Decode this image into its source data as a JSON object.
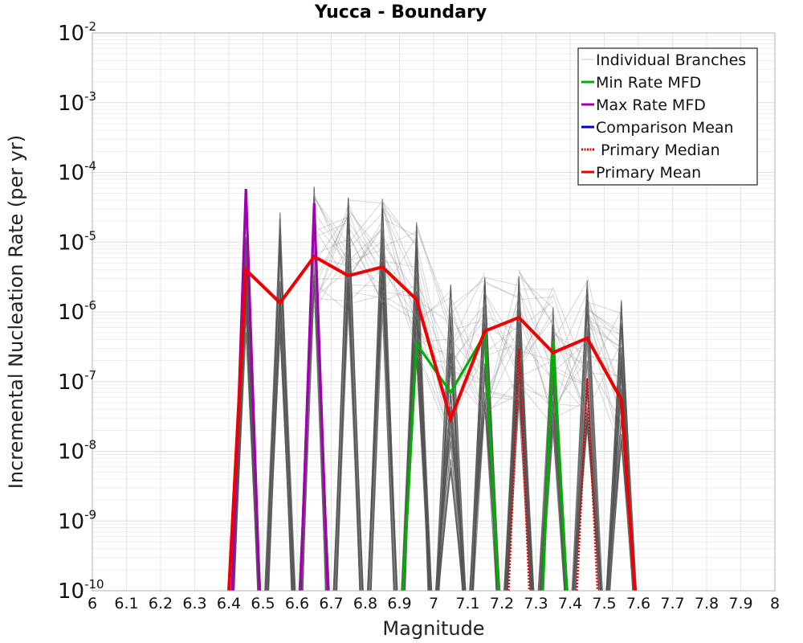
{
  "chart_data": {
    "type": "line",
    "title": "Yucca - Boundary",
    "xlabel": "Magnitude",
    "ylabel": "Incremental Nucleation Rate (per yr)",
    "yscale": "log",
    "xlim": [
      6.0,
      8.0
    ],
    "ylim": [
      1e-10,
      0.01
    ],
    "x_ticks": [
      "6",
      "6.1",
      "6.2",
      "6.3",
      "6.4",
      "6.5",
      "6.6",
      "6.7",
      "6.8",
      "6.9",
      "7",
      "7.1",
      "7.2",
      "7.3",
      "7.4",
      "7.5",
      "7.6",
      "7.7",
      "7.8",
      "7.9",
      "8"
    ],
    "y_ticks": [
      {
        "base": "10",
        "exp": "-2"
      },
      {
        "base": "10",
        "exp": "-3"
      },
      {
        "base": "10",
        "exp": "-4"
      },
      {
        "base": "10",
        "exp": "-5"
      },
      {
        "base": "10",
        "exp": "-6"
      },
      {
        "base": "10",
        "exp": "-7"
      },
      {
        "base": "10",
        "exp": "-8"
      },
      {
        "base": "10",
        "exp": "-9"
      },
      {
        "base": "10",
        "exp": "-10"
      }
    ],
    "grid": true,
    "legend_position": "top-right",
    "legend": [
      {
        "label": "Individual Branches",
        "color": "#c8c8c8",
        "style": "solid",
        "thin": true
      },
      {
        "label": "Min Rate MFD",
        "color": "#00b000",
        "style": "solid"
      },
      {
        "label": "Max Rate MFD",
        "color": "#a000b0",
        "style": "solid"
      },
      {
        "label": "Comparison Mean",
        "color": "#0000d0",
        "style": "solid"
      },
      {
        "label": " Primary Median",
        "color": "#ee0000",
        "style": "dotted"
      },
      {
        "label": "Primary Mean",
        "color": "#ee0000",
        "style": "solid"
      }
    ],
    "branch_spikes": [
      {
        "x": 6.45,
        "high": 1.2e-05,
        "low": 5e-07
      },
      {
        "x": 6.55,
        "high": 4e-05,
        "low": 5e-07
      },
      {
        "x": 6.65,
        "high": 6.5e-05,
        "low": 1e-06
      },
      {
        "x": 6.75,
        "high": 4.5e-05,
        "low": 1e-06
      },
      {
        "x": 6.85,
        "high": 4.5e-05,
        "low": 1e-06
      },
      {
        "x": 6.95,
        "high": 2.3e-05,
        "low": 2e-07
      },
      {
        "x": 7.05,
        "high": 2.5e-06,
        "low": 5e-09
      },
      {
        "x": 7.15,
        "high": 4.3e-06,
        "low": 3e-08
      },
      {
        "x": 7.25,
        "high": 4.3e-06,
        "low": 5e-08
      },
      {
        "x": 7.35,
        "high": 2.3e-06,
        "low": 2e-08
      },
      {
        "x": 7.45,
        "high": 3.3e-06,
        "low": 2e-08
      },
      {
        "x": 7.55,
        "high": 1.7e-06,
        "low": 1e-08
      }
    ],
    "series": [
      {
        "name": "Primary Mean",
        "x": [
          6.4,
          6.45,
          6.55,
          6.65,
          6.75,
          6.85,
          6.95,
          7.05,
          7.15,
          7.25,
          7.35,
          7.45,
          7.55,
          7.59
        ],
        "values": [
          1e-10,
          4e-06,
          1.35e-06,
          6.2e-06,
          3.3e-06,
          4.4e-06,
          1.5e-06,
          2.9e-08,
          5.3e-07,
          8.3e-07,
          2.6e-07,
          4.2e-07,
          5.5e-08,
          1e-10
        ]
      },
      {
        "name": "Min Rate MFD",
        "segments": [
          {
            "x": [
              6.91,
              6.95,
              7.05,
              7.15,
              7.19
            ],
            "values": [
              1e-10,
              3.5e-07,
              7e-08,
              4.8e-07,
              1e-10
            ]
          },
          {
            "x": [
              7.32,
              7.35,
              7.39
            ],
            "values": [
              1e-10,
              3.8e-07,
              1e-10
            ]
          }
        ]
      },
      {
        "name": "Max Rate MFD",
        "segments": [
          {
            "x": [
              6.41,
              6.45,
              6.49
            ],
            "values": [
              1e-10,
              5.8e-05,
              1e-10
            ]
          },
          {
            "x": [
              6.61,
              6.65,
              6.69
            ],
            "values": [
              1e-10,
              3.6e-05,
              1e-10
            ]
          }
        ]
      },
      {
        "name": "Primary Median",
        "segments": [
          {
            "x": [
              7.22,
              7.25,
              7.28
            ],
            "values": [
              1e-10,
              3e-07,
              1e-10
            ]
          },
          {
            "x": [
              7.42,
              7.45,
              7.48
            ],
            "values": [
              1e-10,
              1.1e-07,
              1e-10
            ]
          }
        ]
      }
    ]
  }
}
